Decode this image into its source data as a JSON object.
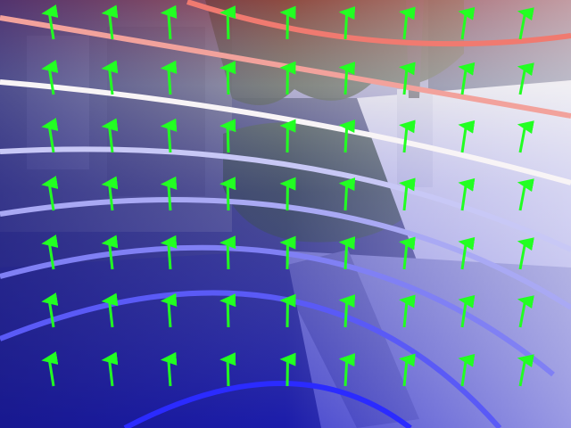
{
  "scene": {
    "colors": {
      "sky": "#8a86b6",
      "foliage_dark": "#1d2a1a",
      "foliage_light": "#4a5c3d",
      "wall_light": "#e9e6ef",
      "deck_light": "#a7a7c6",
      "deck_mid": "#7d7ca6",
      "deck_dark": "#5f5f88",
      "paving": "#3d3f72",
      "arrow": "#22ff22",
      "overlay_top": "#f27b6f",
      "overlay_mid": "#f4f4f8",
      "overlay_bottom": "#1515ff"
    },
    "arrow_icon": "arrow-up-icon",
    "horizon_lines": 8
  }
}
